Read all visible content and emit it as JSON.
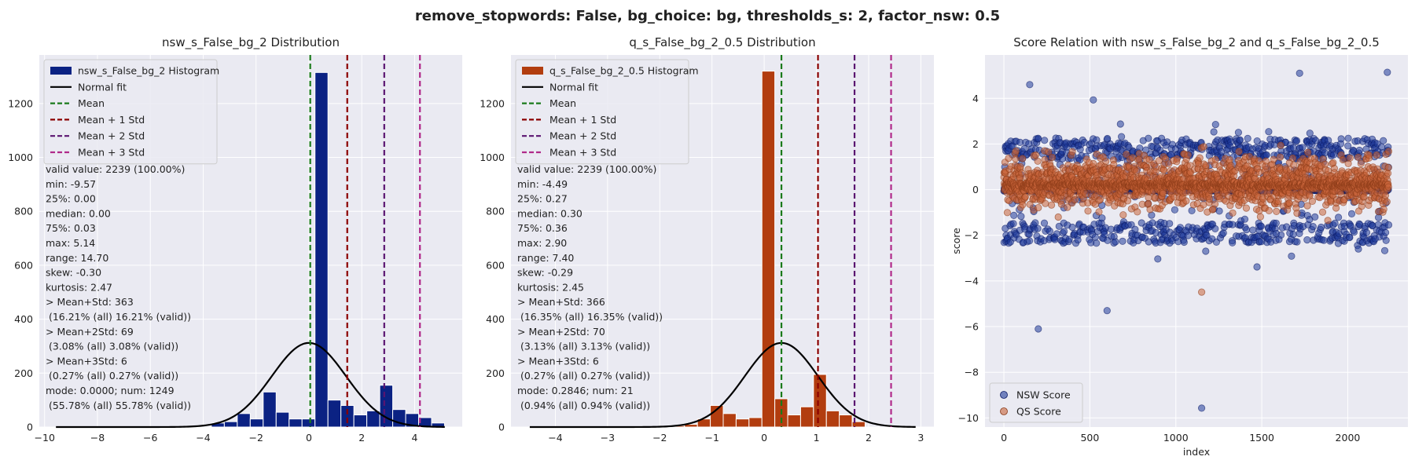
{
  "suptitle": "remove_stopwords: False, bg_choice: bg, thresholds_s: 2, factor_nsw: 0.5",
  "colors": {
    "panel_bg": "#eaeaf2",
    "grid": "#ffffff",
    "nsw_bar": "#0b2283",
    "qs_bar": "#b23d0f",
    "normal_fit": "#000000",
    "mean": "#1a7a1a",
    "std1": "#8b0000",
    "std2": "#5a1470",
    "std3": "#b02a8a",
    "nsw_point": "#1f3a9a",
    "qs_point": "#c8643a"
  },
  "chart_data": [
    {
      "type": "bar",
      "title": "nsw_s_False_bg_2 Distribution",
      "xlim": [
        -10.2,
        5.8
      ],
      "ylim": [
        0,
        1380
      ],
      "xticks": [
        -10,
        -8,
        -6,
        -4,
        -2,
        0,
        2,
        4
      ],
      "yticks": [
        0,
        200,
        400,
        600,
        800,
        1000,
        1200
      ],
      "bin_left": -9.57,
      "bin_width": 0.49,
      "counts": [
        0,
        0,
        0,
        0,
        0,
        0,
        0,
        0,
        0,
        0,
        0,
        0,
        15,
        20,
        50,
        30,
        130,
        55,
        30,
        30,
        1315,
        100,
        80,
        45,
        60,
        155,
        65,
        50,
        35,
        15
      ],
      "legend": [
        "nsw_s_False_bg_2 Histogram",
        "Normal fit",
        "Mean",
        "Mean + 1 Std",
        "Mean + 2 Std",
        "Mean + 3 Std"
      ],
      "normal_fit": {
        "mean": 0.0,
        "std": 1.4,
        "peak": 312,
        "xrange": [
          -9.57,
          5.14
        ]
      },
      "lines": {
        "mean": 0.05,
        "std1": 1.45,
        "std2": 2.85,
        "std3": 4.2
      },
      "stats": [
        "valid value: 2239 (100.00%)",
        "min: -9.57",
        "25%: 0.00",
        "median: 0.00",
        "75%: 0.03",
        "max: 5.14",
        "range: 14.70",
        "skew: -0.30",
        "kurtosis: 2.47",
        "> Mean+Std: 363",
        " (16.21% (all) 16.21% (valid))",
        "> Mean+2Std: 69",
        " (3.08% (all) 3.08% (valid))",
        "> Mean+3Std: 6",
        " (0.27% (all) 0.27% (valid))",
        "mode: 0.0000; num: 1249",
        " (55.78% (all) 55.78% (valid))"
      ]
    },
    {
      "type": "bar",
      "title": "q_s_False_bg_2_0.5 Distribution",
      "xlim": [
        -4.85,
        3.25
      ],
      "ylim": [
        0,
        1380
      ],
      "xticks": [
        -4,
        -3,
        -2,
        -1,
        0,
        1,
        2,
        3
      ],
      "yticks": [
        0,
        200,
        400,
        600,
        800,
        1000,
        1200
      ],
      "bin_left": -4.49,
      "bin_width": 0.247,
      "counts": [
        0,
        0,
        0,
        0,
        0,
        0,
        0,
        0,
        0,
        0,
        0,
        5,
        10,
        30,
        80,
        50,
        30,
        35,
        1320,
        105,
        45,
        75,
        195,
        60,
        45,
        20,
        0,
        0,
        0,
        0
      ],
      "legend": [
        "q_s_False_bg_2_0.5 Histogram",
        "Normal fit",
        "Mean",
        "Mean + 1 Std",
        "Mean + 2 Std",
        "Mean + 3 Std"
      ],
      "normal_fit": {
        "mean": 0.33,
        "std": 0.7,
        "peak": 312,
        "xrange": [
          -4.49,
          2.9
        ]
      },
      "lines": {
        "mean": 0.33,
        "std1": 1.03,
        "std2": 1.73,
        "std3": 2.43
      },
      "stats": [
        "valid value: 2239 (100.00%)",
        "min: -4.49",
        "25%: 0.27",
        "median: 0.30",
        "75%: 0.36",
        "max: 2.90",
        "range: 7.40",
        "skew: -0.29",
        "kurtosis: 2.45",
        "> Mean+Std: 366",
        " (16.35% (all) 16.35% (valid))",
        "> Mean+2Std: 70",
        " (3.13% (all) 3.13% (valid))",
        "> Mean+3Std: 6",
        " (0.27% (all) 0.27% (valid))",
        "mode: 0.2846; num: 21",
        " (0.94% (all) 0.94% (valid))"
      ]
    },
    {
      "type": "scatter",
      "title": "Score Relation with nsw_s_False_bg_2 and q_s_False_bg_2_0.5",
      "xlabel": "index",
      "ylabel": "score",
      "xlim": [
        -110,
        2350
      ],
      "ylim": [
        -10.4,
        5.9
      ],
      "xticks": [
        0,
        500,
        1000,
        1500,
        2000
      ],
      "yticks": [
        -10,
        -8,
        -6,
        -4,
        -2,
        0,
        2,
        4
      ],
      "n_points": 2239,
      "legend": [
        "NSW Score",
        "QS Score"
      ],
      "notable_points": [
        {
          "series": "NSW Score",
          "x": 1150,
          "y": -9.57
        },
        {
          "series": "NSW Score",
          "x": 200,
          "y": -6.1
        },
        {
          "series": "NSW Score",
          "x": 600,
          "y": -5.3
        },
        {
          "series": "NSW Score",
          "x": 1720,
          "y": 5.1
        },
        {
          "series": "NSW Score",
          "x": 2230,
          "y": 5.14
        },
        {
          "series": "NSW Score",
          "x": 150,
          "y": 4.6
        },
        {
          "series": "QS Score",
          "x": 1150,
          "y": -4.49
        }
      ]
    }
  ]
}
